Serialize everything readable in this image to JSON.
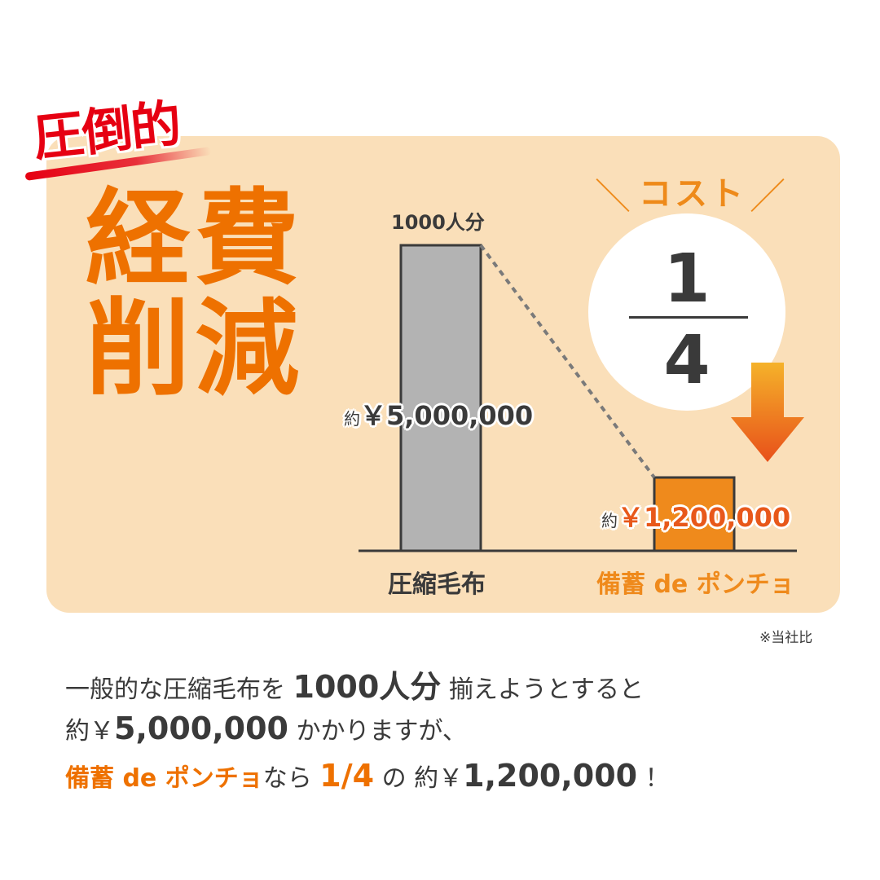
{
  "headline": {
    "badge": "圧倒的",
    "line1": "経費",
    "line2": "削減"
  },
  "cost_badge": {
    "label": "コスト",
    "slash_left": "＼",
    "slash_right": "／",
    "numerator": "1",
    "denominator": "4"
  },
  "colors": {
    "panel": "#fadfb9",
    "headline": "#ee7100",
    "badge": "#e60012",
    "bar_gray": "#b3b3b3",
    "bar_orange": "#ef8a1c",
    "value_orange": "#e8581a"
  },
  "chart_data": {
    "type": "bar",
    "categories": [
      "圧縮毛布",
      "備蓄 de ポンチョ"
    ],
    "values": [
      5000000,
      1200000
    ],
    "value_labels": [
      {
        "prefix": "約",
        "text": "￥5,000,000"
      },
      {
        "prefix": "約",
        "text": "￥1,200,000"
      }
    ],
    "top_label": "1000人分",
    "ylim": [
      0,
      5000000
    ],
    "grid": false
  },
  "footnote": "※当社比",
  "description": {
    "l1a": "一般的な圧縮毛布を",
    "l1b": "1000人分",
    "l1c": "揃えようとすると",
    "l2a": "約￥",
    "l2b": "5,000,000",
    "l2c": "かかりますが、",
    "l3a": "備蓄 de ポンチョ",
    "l3b": "なら",
    "l3c": "1/4",
    "l3d": "の 約￥",
    "l3e": "1,200,000",
    "l3f": "！"
  }
}
